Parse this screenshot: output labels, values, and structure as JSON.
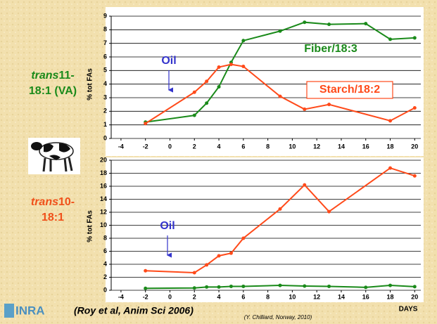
{
  "chart_data": [
    {
      "type": "line",
      "y_label": "% tot FAs",
      "xlim": [
        -4.8,
        20.5
      ],
      "xticks": [
        -4,
        -2,
        0,
        2,
        4,
        6,
        8,
        10,
        12,
        14,
        16,
        18,
        20
      ],
      "ylim": [
        0,
        9
      ],
      "yticks": [
        0,
        1,
        2,
        3,
        4,
        5,
        6,
        7,
        8,
        9
      ],
      "grid": true,
      "annotations": [
        "Oil"
      ],
      "series": [
        {
          "name": "Fiber/18:3",
          "color": "#1a8a1a",
          "x": [
            -2,
            2,
            3,
            4,
            5,
            6,
            9,
            11,
            13,
            16,
            18,
            20
          ],
          "values": [
            1.2,
            1.7,
            2.6,
            3.8,
            5.6,
            7.2,
            7.9,
            8.55,
            8.4,
            8.45,
            7.3,
            7.4
          ]
        },
        {
          "name": "Starch/18:2",
          "color": "#ff4a1a",
          "x": [
            -2,
            2,
            3,
            4,
            5,
            6,
            9,
            11,
            13,
            18,
            20
          ],
          "values": [
            1.1,
            3.4,
            4.2,
            5.25,
            5.45,
            5.3,
            3.1,
            2.15,
            2.5,
            1.3,
            2.25
          ]
        }
      ]
    },
    {
      "type": "line",
      "y_label": "% tot FAs",
      "x_label": "DAYS",
      "xlim": [
        -4.8,
        20.5
      ],
      "xticks": [
        -4,
        -2,
        0,
        2,
        4,
        6,
        8,
        10,
        12,
        14,
        16,
        18,
        20
      ],
      "ylim": [
        0,
        20
      ],
      "yticks": [
        0,
        2,
        4,
        6,
        8,
        10,
        12,
        14,
        16,
        18,
        20
      ],
      "grid": true,
      "annotations": [
        "Oil"
      ],
      "series": [
        {
          "color": "#ff4a1a",
          "x": [
            -2,
            2,
            3,
            4,
            5,
            6,
            9,
            11,
            13,
            18,
            20
          ],
          "values": [
            3.0,
            2.7,
            3.9,
            5.3,
            5.7,
            8.0,
            12.5,
            16.2,
            12.1,
            18.8,
            17.6
          ]
        },
        {
          "color": "#1a8a1a",
          "x": [
            -2,
            2,
            3,
            4,
            5,
            6,
            9,
            11,
            13,
            16,
            18,
            20
          ],
          "values": [
            0.3,
            0.35,
            0.5,
            0.5,
            0.6,
            0.6,
            0.75,
            0.65,
            0.6,
            0.45,
            0.75,
            0.55
          ]
        }
      ]
    }
  ],
  "side_labels": [
    {
      "italic": "trans",
      "rest": "11-",
      "line2": "18:1 (VA)"
    },
    {
      "italic": "trans",
      "rest": "10-",
      "line2": "18:1"
    }
  ],
  "logo": "INRA",
  "reference": "(Roy et al, Anim Sci 2006)",
  "credit": "(Y. Chilliard, Norway, 2010)"
}
